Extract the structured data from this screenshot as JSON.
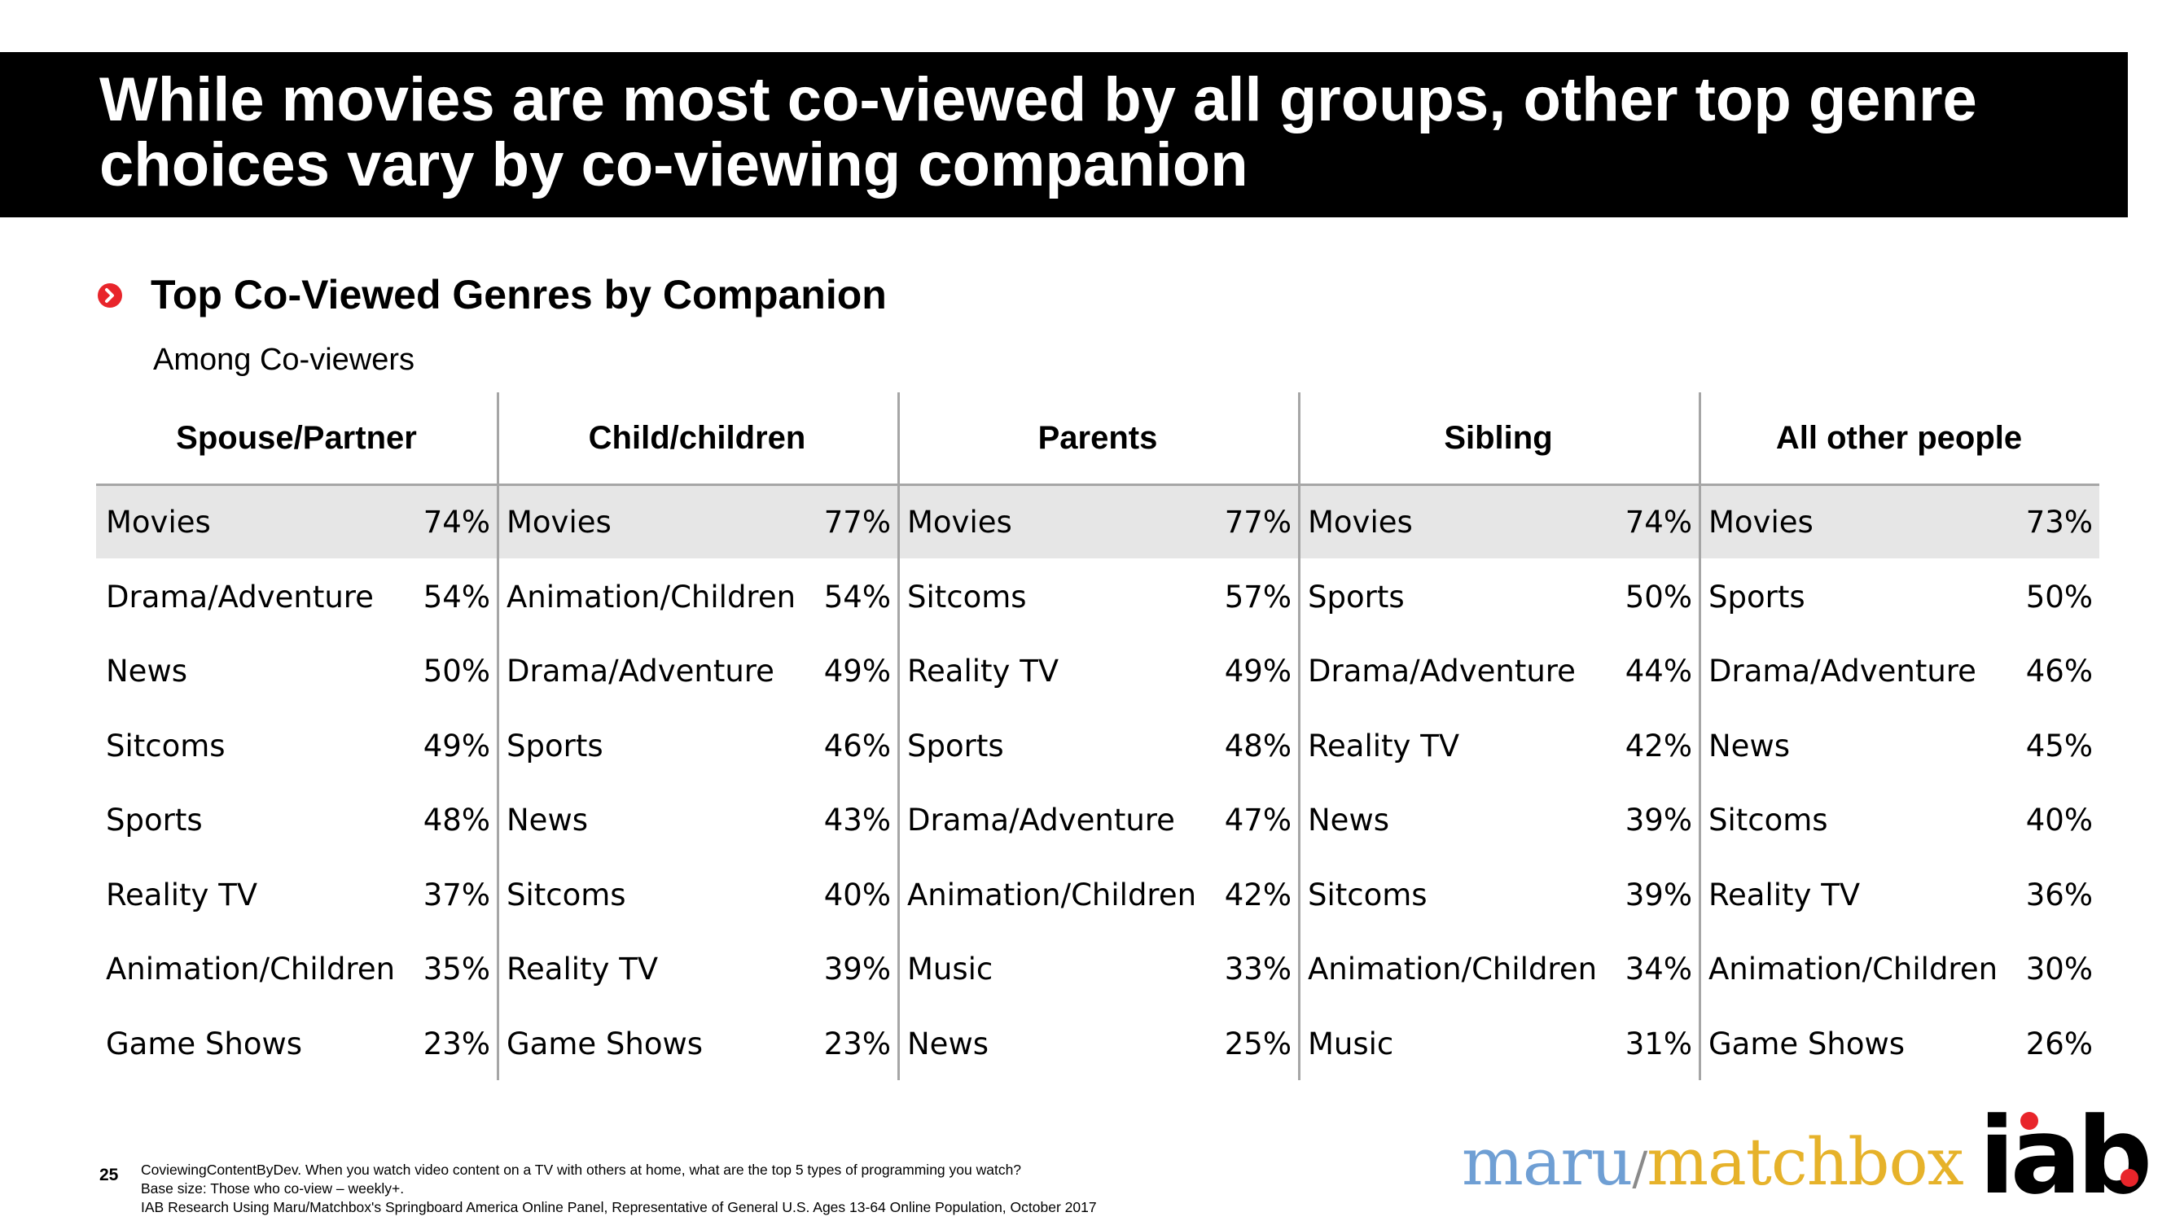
{
  "title": {
    "line1": "While movies are most co-viewed by all groups, other top genre",
    "line2": "choices vary by co-viewing companion"
  },
  "subtitle": "Top Co-Viewed Genres by Companion",
  "note": "Among Co-viewers",
  "table": {
    "columns": [
      {
        "header": "Spouse/Partner",
        "rows": [
          {
            "genre": "Movies",
            "pct": "74%"
          },
          {
            "genre": "Drama/Adventure",
            "pct": "54%"
          },
          {
            "genre": "News",
            "pct": "50%"
          },
          {
            "genre": "Sitcoms",
            "pct": "49%"
          },
          {
            "genre": "Sports",
            "pct": "48%"
          },
          {
            "genre": "Reality TV",
            "pct": "37%"
          },
          {
            "genre": "Animation/Children",
            "pct": "35%"
          },
          {
            "genre": "Game Shows",
            "pct": "23%"
          }
        ]
      },
      {
        "header": "Child/children",
        "rows": [
          {
            "genre": "Movies",
            "pct": "77%"
          },
          {
            "genre": "Animation/Children",
            "pct": "54%"
          },
          {
            "genre": "Drama/Adventure",
            "pct": "49%"
          },
          {
            "genre": "Sports",
            "pct": "46%"
          },
          {
            "genre": "News",
            "pct": "43%"
          },
          {
            "genre": "Sitcoms",
            "pct": "40%"
          },
          {
            "genre": "Reality TV",
            "pct": "39%"
          },
          {
            "genre": "Game Shows",
            "pct": "23%"
          }
        ]
      },
      {
        "header": "Parents",
        "rows": [
          {
            "genre": "Movies",
            "pct": "77%"
          },
          {
            "genre": "Sitcoms",
            "pct": "57%"
          },
          {
            "genre": "Reality TV",
            "pct": "49%"
          },
          {
            "genre": "Sports",
            "pct": "48%"
          },
          {
            "genre": "Drama/Adventure",
            "pct": "47%"
          },
          {
            "genre": "Animation/Children",
            "pct": "42%"
          },
          {
            "genre": "Music",
            "pct": "33%"
          },
          {
            "genre": "News",
            "pct": "25%"
          }
        ]
      },
      {
        "header": "Sibling",
        "rows": [
          {
            "genre": "Movies",
            "pct": "74%"
          },
          {
            "genre": "Sports",
            "pct": "50%"
          },
          {
            "genre": "Drama/Adventure",
            "pct": "44%"
          },
          {
            "genre": "Reality TV",
            "pct": "42%"
          },
          {
            "genre": "News",
            "pct": "39%"
          },
          {
            "genre": "Sitcoms",
            "pct": "39%"
          },
          {
            "genre": "Animation/Children",
            "pct": "34%"
          },
          {
            "genre": "Music",
            "pct": "31%"
          }
        ]
      },
      {
        "header": "All other people",
        "rows": [
          {
            "genre": "Movies",
            "pct": "73%"
          },
          {
            "genre": "Sports",
            "pct": "50%"
          },
          {
            "genre": "Drama/Adventure",
            "pct": "46%"
          },
          {
            "genre": "News",
            "pct": "45%"
          },
          {
            "genre": "Sitcoms",
            "pct": "40%"
          },
          {
            "genre": "Reality TV",
            "pct": "36%"
          },
          {
            "genre": "Animation/Children",
            "pct": "30%"
          },
          {
            "genre": "Game Shows",
            "pct": "26%"
          }
        ]
      }
    ]
  },
  "footer": {
    "page_number": "25",
    "footnote_lines": [
      "CoviewingContentByDev. When you watch video content on a TV with others at home, what are the top 5 types of programming you watch?",
      "Base size: Those who co-view – weekly+.",
      "IAB Research Using Maru/Matchbox's Springboard America Online Panel, Representative of General U.S. Ages 13-64 Online Population, October 2017"
    ],
    "logo_maru": "maru",
    "logo_slash": "/",
    "logo_matchbox": "matchbox",
    "logo_iab": "iab"
  },
  "colors": {
    "title_bar": "#000000",
    "accent_red": "#e8252b",
    "highlight_row": "#e6e6e6",
    "maru_blue": "#6f9fd4",
    "matchbox_gold": "#e6b22a"
  }
}
